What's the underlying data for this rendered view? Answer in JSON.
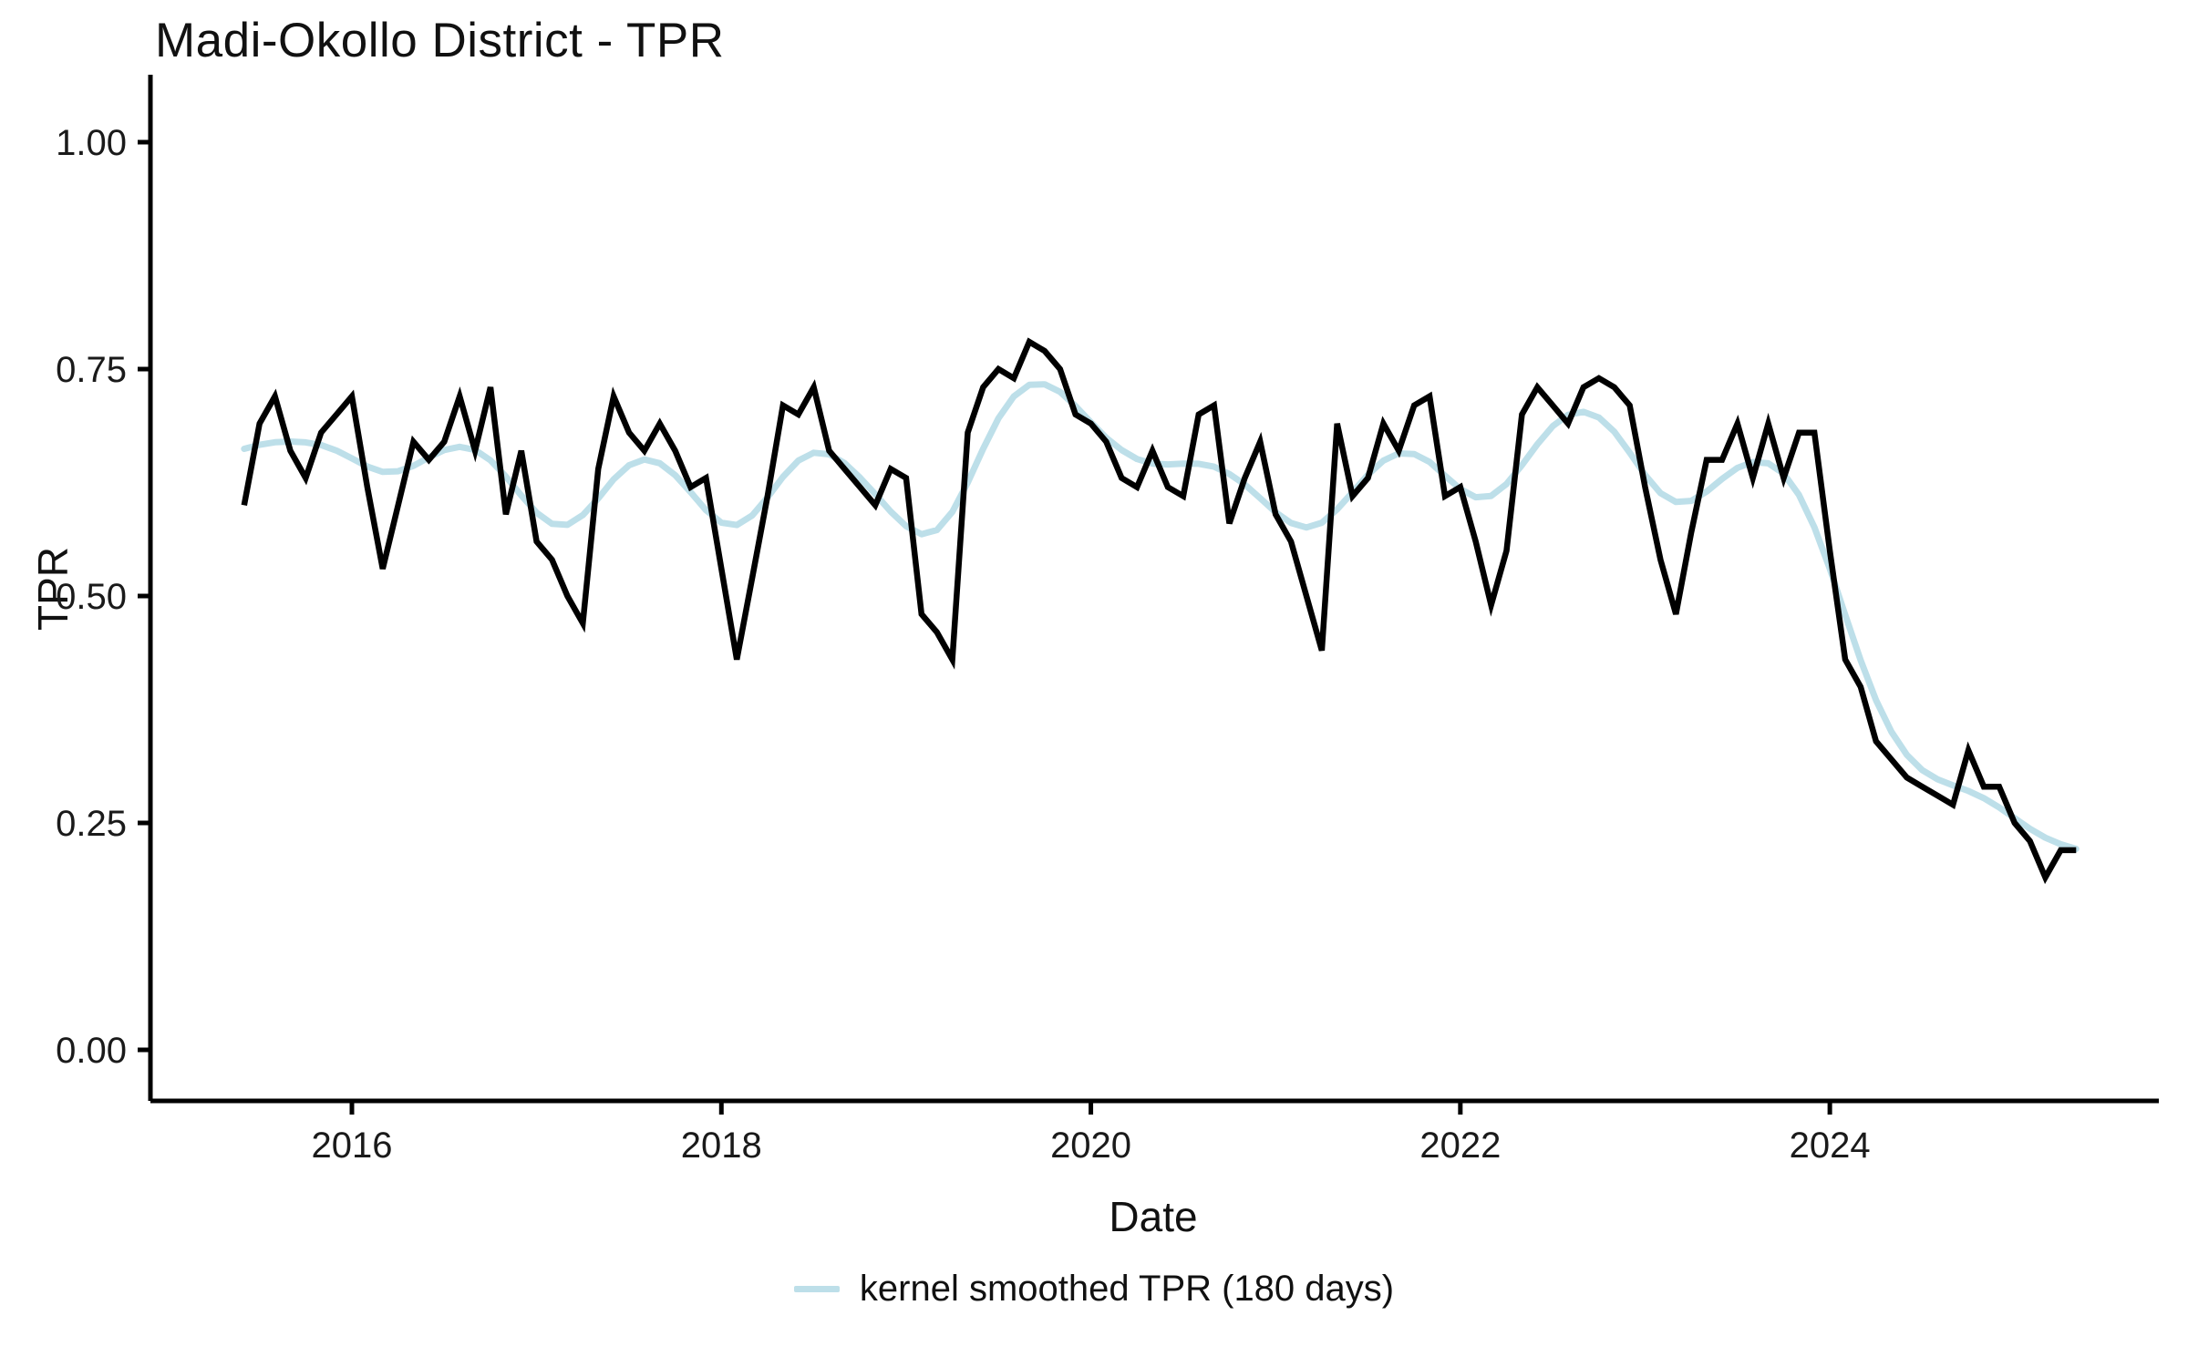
{
  "title": "Madi-Okollo District - TPR",
  "axes": {
    "x": {
      "label": "Date",
      "tick_labels": [
        "2016",
        "2018",
        "2020",
        "2022",
        "2024"
      ],
      "tick_years": [
        2016,
        2018,
        2020,
        2022,
        2024
      ]
    },
    "y": {
      "label": "TPR",
      "tick_labels": [
        "0.00",
        "0.25",
        "0.50",
        "0.75",
        "1.00"
      ],
      "tick_values": [
        0,
        0.25,
        0.5,
        0.75,
        1
      ]
    }
  },
  "legend": {
    "items": [
      {
        "label": "kernel smoothed TPR (180 days)",
        "color": "#BDDFE9"
      }
    ]
  },
  "colors": {
    "tpr_line": "#000000",
    "smoothed_line": "#BDDFE9",
    "axis": "#000000",
    "background": "#FFFFFF"
  },
  "chart_data": {
    "type": "line",
    "title": "Madi-Okollo District - TPR",
    "xlabel": "Date",
    "ylabel": "TPR",
    "ylim": [
      0,
      1
    ],
    "x_range_years": [
      2015.35,
      2025.65
    ],
    "grid": false,
    "legend_position": "bottom",
    "frequency": "monthly",
    "start_month": "2015-06",
    "end_month": "2025-05",
    "series": [
      {
        "name": "TPR",
        "color": "#000000",
        "values": [
          0.6,
          0.69,
          0.72,
          0.66,
          0.63,
          0.68,
          0.7,
          0.72,
          0.62,
          0.53,
          0.6,
          0.67,
          0.65,
          0.67,
          0.72,
          0.66,
          0.73,
          0.59,
          0.66,
          0.56,
          0.54,
          0.5,
          0.47,
          0.64,
          0.72,
          0.68,
          0.66,
          0.69,
          0.66,
          0.62,
          0.63,
          0.53,
          0.43,
          0.52,
          0.61,
          0.71,
          0.7,
          0.73,
          0.66,
          0.64,
          0.62,
          0.6,
          0.64,
          0.63,
          0.48,
          0.46,
          0.43,
          0.68,
          0.73,
          0.75,
          0.74,
          0.78,
          0.77,
          0.75,
          0.7,
          0.69,
          0.67,
          0.63,
          0.62,
          0.66,
          0.62,
          0.61,
          0.7,
          0.71,
          0.58,
          0.63,
          0.67,
          0.59,
          0.56,
          0.5,
          0.44,
          0.69,
          0.61,
          0.63,
          0.69,
          0.66,
          0.71,
          0.72,
          0.61,
          0.62,
          0.56,
          0.49,
          0.55,
          0.7,
          0.73,
          0.71,
          0.69,
          0.73,
          0.74,
          0.73,
          0.71,
          0.62,
          0.54,
          0.48,
          0.57,
          0.65,
          0.65,
          0.69,
          0.63,
          0.69,
          0.63,
          0.68,
          0.68,
          0.55,
          0.43,
          0.4,
          0.34,
          0.32,
          0.3,
          0.29,
          0.28,
          0.27,
          0.33,
          0.29,
          0.29,
          0.25,
          0.23,
          0.19,
          0.22,
          0.22
        ]
      },
      {
        "name": "kernel smoothed TPR (180 days)",
        "color": "#BDDFE9",
        "derivation": "gaussian kernel smooth of the TPR series, 180-day window",
        "sigma_months": 2.5
      }
    ]
  }
}
